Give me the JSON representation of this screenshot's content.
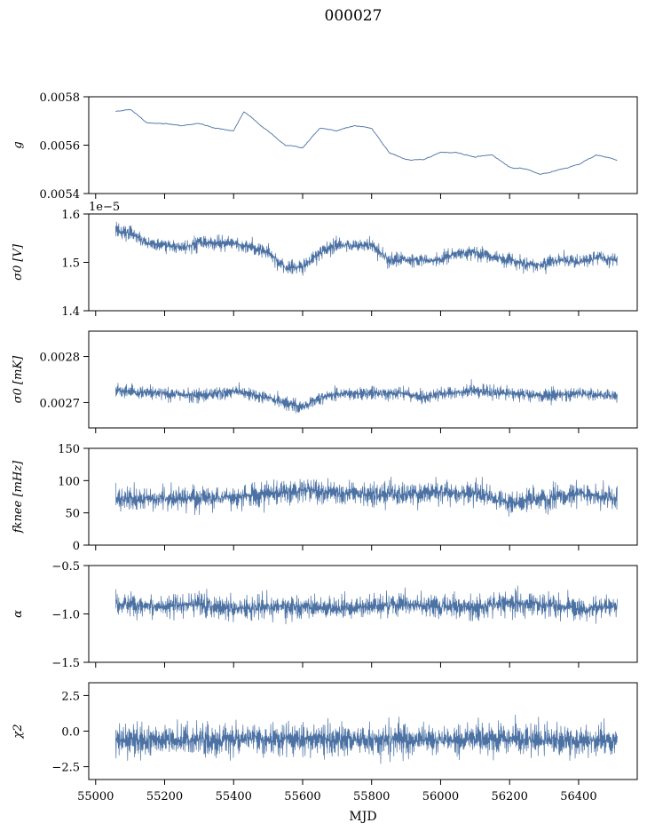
{
  "figure": {
    "title": "000027",
    "xlabel": "MJD",
    "line_color": "#4c72a4",
    "xlim": [
      54980,
      56570
    ],
    "xticks": [
      55000,
      55200,
      55400,
      55600,
      55800,
      56000,
      56200,
      56400
    ],
    "xtick_labels": [
      "55000",
      "55200",
      "55400",
      "55600",
      "55800",
      "56000",
      "56200",
      "56400"
    ],
    "data_start": 55058,
    "data_end": 56512
  },
  "chart_data": [
    {
      "type": "line",
      "ylabel": "g",
      "ylim": [
        0.0054,
        0.0058
      ],
      "yticks": [
        0.0054,
        0.0056,
        0.0058
      ],
      "ytick_labels": [
        "0.0054",
        "0.0056",
        "0.0058"
      ],
      "offset_text": "",
      "noise": 3e-06,
      "series": [
        {
          "x": [
            55058,
            55100,
            55150,
            55200,
            55250,
            55300,
            55350,
            55400,
            55430,
            55480,
            55550,
            55600,
            55650,
            55700,
            55750,
            55800,
            55850,
            55900,
            55950,
            56000,
            56050,
            56100,
            56150,
            56200,
            56250,
            56290,
            56350,
            56400,
            56450,
            56512
          ],
          "y": [
            0.00574,
            0.00575,
            0.00569,
            0.00569,
            0.00568,
            0.00569,
            0.00567,
            0.00566,
            0.00574,
            0.00568,
            0.0056,
            0.00559,
            0.00567,
            0.00566,
            0.00568,
            0.00567,
            0.00557,
            0.00554,
            0.00554,
            0.00557,
            0.00557,
            0.00555,
            0.00556,
            0.00551,
            0.0055,
            0.00548,
            0.0055,
            0.00552,
            0.00556,
            0.00554
          ]
        }
      ]
    },
    {
      "type": "line",
      "ylabel": "σ0 [V]",
      "ylim": [
        1.4,
        1.6
      ],
      "yticks": [
        1.4,
        1.5,
        1.6
      ],
      "ytick_labels": [
        "1.4",
        "1.5",
        "1.6"
      ],
      "offset_text": "1e−5",
      "noise": 0.012,
      "series": [
        {
          "x": [
            55058,
            55100,
            55150,
            55200,
            55250,
            55300,
            55400,
            55500,
            55550,
            55600,
            55650,
            55700,
            55800,
            55850,
            55900,
            56000,
            56050,
            56100,
            56200,
            56250,
            56300,
            56350,
            56400,
            56450,
            56512
          ],
          "y": [
            1.565,
            1.56,
            1.54,
            1.535,
            1.53,
            1.54,
            1.54,
            1.52,
            1.49,
            1.49,
            1.52,
            1.535,
            1.535,
            1.505,
            1.505,
            1.505,
            1.52,
            1.52,
            1.505,
            1.495,
            1.495,
            1.505,
            1.5,
            1.51,
            1.505
          ]
        }
      ]
    },
    {
      "type": "line",
      "ylabel": "σ0 [mK]",
      "ylim": [
        0.002645,
        0.002855
      ],
      "yticks": [
        0.0027,
        0.0028
      ],
      "ytick_labels": [
        "0.0027",
        "0.0028"
      ],
      "offset_text": "",
      "noise": 1.2e-05,
      "series": [
        {
          "x": [
            55058,
            55200,
            55300,
            55400,
            55500,
            55600,
            55650,
            55700,
            55800,
            55900,
            55950,
            56000,
            56100,
            56200,
            56300,
            56400,
            56512
          ],
          "y": [
            0.002725,
            0.00272,
            0.002715,
            0.002725,
            0.00271,
            0.00269,
            0.00271,
            0.00272,
            0.00272,
            0.00272,
            0.00271,
            0.00272,
            0.002725,
            0.00272,
            0.002715,
            0.00272,
            0.002715
          ]
        }
      ]
    },
    {
      "type": "line",
      "ylabel": "fknee [mHz]",
      "ylim": [
        0,
        150
      ],
      "yticks": [
        0,
        50,
        100,
        150
      ],
      "ytick_labels": [
        "0",
        "50",
        "100",
        "150"
      ],
      "offset_text": "",
      "noise": 15,
      "series": [
        {
          "x": [
            55058,
            55200,
            55300,
            55400,
            55500,
            55600,
            55700,
            55800,
            55900,
            56000,
            56100,
            56200,
            56300,
            56400,
            56512
          ],
          "y": [
            72,
            72,
            73,
            75,
            78,
            85,
            82,
            80,
            78,
            82,
            80,
            65,
            72,
            80,
            72
          ]
        }
      ]
    },
    {
      "type": "line",
      "ylabel": "α",
      "ylim": [
        -1.5,
        -0.5
      ],
      "yticks": [
        -1.5,
        -1.0,
        -0.5
      ],
      "ytick_labels": [
        "−1.5",
        "−1.0",
        "−0.5"
      ],
      "offset_text": "",
      "noise": 0.1,
      "series": [
        {
          "x": [
            55058,
            55200,
            55300,
            55400,
            55500,
            55600,
            55700,
            55800,
            55900,
            56000,
            56100,
            56200,
            56300,
            56400,
            56512
          ],
          "y": [
            -0.9,
            -0.92,
            -0.9,
            -0.95,
            -0.93,
            -0.92,
            -0.95,
            -0.92,
            -0.9,
            -0.92,
            -0.93,
            -0.88,
            -0.9,
            -0.95,
            -0.92
          ]
        }
      ]
    },
    {
      "type": "line",
      "ylabel": "χ2",
      "ylim": [
        -3.4,
        3.4
      ],
      "yticks": [
        -2.5,
        0.0,
        2.5
      ],
      "ytick_labels": [
        "−2.5",
        "0.0",
        "2.5"
      ],
      "offset_text": "",
      "noise": 0.9,
      "series": [
        {
          "x": [
            55058,
            55300,
            55600,
            55900,
            56200,
            56512
          ],
          "y": [
            -0.6,
            -0.6,
            -0.55,
            -0.6,
            -0.6,
            -0.6
          ]
        }
      ]
    }
  ]
}
